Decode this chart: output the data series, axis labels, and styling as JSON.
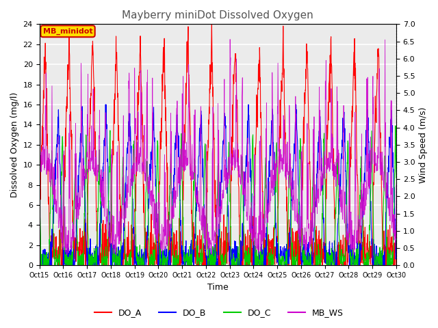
{
  "title": "Mayberry miniDot Dissolved Oxygen",
  "xlabel": "Time",
  "ylabel_left": "Dissolved Oxygen (mg/l)",
  "ylabel_right": "Wind Speed (m/s)",
  "ylim_left": [
    0,
    24
  ],
  "ylim_right": [
    0,
    7.0
  ],
  "yticks_left": [
    0,
    2,
    4,
    6,
    8,
    10,
    12,
    14,
    16,
    18,
    20,
    22,
    24
  ],
  "yticks_right": [
    0.0,
    0.5,
    1.0,
    1.5,
    2.0,
    2.5,
    3.0,
    3.5,
    4.0,
    4.5,
    5.0,
    5.5,
    6.0,
    6.5,
    7.0
  ],
  "xtick_labels": [
    "Oct 15",
    "Oct 16",
    "Oct 17",
    "Oct 18",
    "Oct 19",
    "Oct 20",
    "Oct 21",
    "Oct 22",
    "Oct 23",
    "Oct 24",
    "Oct 25",
    "Oct 26",
    "Oct 27",
    "Oct 28",
    "Oct 29",
    "Oct 30"
  ],
  "xtick_positions": [
    0,
    1,
    2,
    3,
    4,
    5,
    6,
    7,
    8,
    9,
    10,
    11,
    12,
    13,
    14,
    15
  ],
  "legend_labels": [
    "DO_A",
    "DO_B",
    "DO_C",
    "MB_WS"
  ],
  "legend_colors": [
    "#ff0000",
    "#0000ff",
    "#00cc00",
    "#cc00cc"
  ],
  "annotation_text": "MB_minidot",
  "annotation_color": "#cc0000",
  "annotation_bg": "#ffdd00",
  "plot_bg_color": "#ebebeb",
  "grid_color": "#ffffff",
  "n_points": 1500,
  "n_days": 15
}
